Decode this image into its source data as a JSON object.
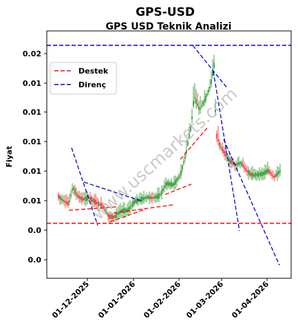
{
  "chart_data": {
    "type": "candlestick",
    "title": "GPS-USD",
    "subtitle": "GPS USD Teknik Analizi",
    "ylabel": "Fiyat",
    "xlabel": "",
    "y_tick_labels": [
      "0.0",
      "0.0",
      "0.01",
      "0.01",
      "0.01",
      "0.01",
      "0.01",
      "0.02"
    ],
    "x_tick_labels": [
      "01-12-2025",
      "01-01-2026",
      "01-02-2026",
      "01-03-2026",
      "01-04-2026"
    ],
    "legend": {
      "placement": "upper-left",
      "entries": [
        "Destek",
        "Direnç"
      ]
    },
    "watermark": "www.uscmarkets.com",
    "colors": {
      "up": "#008000",
      "down": "#ff0000",
      "support": "#ff0000",
      "resistance": "#0000cc"
    },
    "grid": false
  }
}
